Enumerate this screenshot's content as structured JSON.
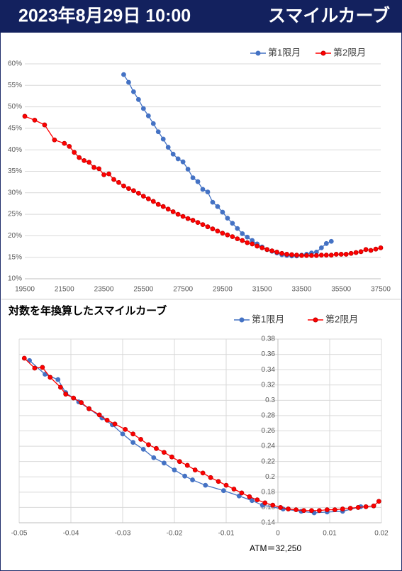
{
  "header": {
    "date": "2023年8月29日 10:00",
    "title": "スマイルカーブ"
  },
  "chart_data": [
    {
      "type": "line",
      "xlim": [
        19500,
        37500
      ],
      "xticks": [
        19500,
        21500,
        23500,
        25500,
        27500,
        29500,
        31500,
        33500,
        35500,
        37500
      ],
      "ylim": [
        10,
        60
      ],
      "yticks": [
        {
          "value": 10,
          "label": "10%"
        },
        {
          "value": 15,
          "label": "15%"
        },
        {
          "value": 20,
          "label": "20%"
        },
        {
          "value": 25,
          "label": "25%"
        },
        {
          "value": 30,
          "label": "30%"
        },
        {
          "value": 35,
          "label": "35%"
        },
        {
          "value": 40,
          "label": "40%"
        },
        {
          "value": 45,
          "label": "45%"
        },
        {
          "value": 50,
          "label": "50%"
        },
        {
          "value": 55,
          "label": "55%"
        },
        {
          "value": 60,
          "label": "60%"
        }
      ],
      "grid": [
        "y"
      ],
      "legend": "top-right",
      "series": [
        {
          "name": "第1限月",
          "color": "#4472c4",
          "marker_edge": "#4472c4",
          "x": [
            24500,
            24750,
            25000,
            25250,
            25500,
            25750,
            26000,
            26250,
            26500,
            26750,
            27000,
            27250,
            27500,
            27750,
            28000,
            28250,
            28500,
            28750,
            29000,
            29250,
            29500,
            29750,
            30000,
            30250,
            30500,
            30750,
            31000,
            31250,
            31500,
            31750,
            32000,
            32250,
            32500,
            32750,
            33000,
            33250,
            33500,
            33750,
            34000,
            34250,
            34500,
            34750,
            35000
          ],
          "values": [
            57.5,
            55.7,
            53.5,
            51.7,
            49.6,
            47.9,
            46.1,
            44.2,
            42.5,
            40.6,
            39.0,
            37.9,
            37.2,
            35.5,
            33.5,
            32.6,
            30.8,
            30.2,
            27.8,
            26.8,
            25.5,
            24.1,
            22.9,
            21.7,
            20.5,
            19.7,
            18.9,
            18.1,
            17.4,
            16.8,
            16.4,
            16.0,
            15.6,
            15.4,
            15.3,
            15.3,
            15.5,
            15.7,
            16.0,
            16.2,
            17.2,
            18.2,
            18.7
          ]
        },
        {
          "name": "第2限月",
          "color": "#ff0000",
          "marker_edge": "#c00000",
          "x": [
            19500,
            20000,
            20500,
            21000,
            21500,
            21750,
            22000,
            22250,
            22500,
            22750,
            23000,
            23250,
            23500,
            23750,
            24000,
            24250,
            24500,
            24750,
            25000,
            25250,
            25500,
            25750,
            26000,
            26250,
            26500,
            26750,
            27000,
            27250,
            27500,
            27750,
            28000,
            28250,
            28500,
            28750,
            29000,
            29250,
            29500,
            29750,
            30000,
            30250,
            30500,
            30750,
            31000,
            31250,
            31500,
            31750,
            32000,
            32250,
            32500,
            32750,
            33000,
            33250,
            33500,
            33750,
            34000,
            34250,
            34500,
            34750,
            35000,
            35250,
            35500,
            35750,
            36000,
            36250,
            36500,
            36750,
            37000,
            37250,
            37500
          ],
          "values": [
            47.8,
            46.9,
            45.8,
            42.3,
            41.5,
            40.8,
            39.4,
            38.2,
            37.5,
            37.1,
            35.9,
            35.6,
            34.2,
            34.4,
            33.1,
            32.4,
            31.6,
            31.0,
            30.5,
            29.9,
            29.2,
            28.6,
            28.0,
            27.3,
            26.8,
            26.2,
            25.6,
            25.0,
            24.5,
            24.0,
            23.6,
            23.1,
            22.6,
            22.1,
            21.6,
            21.1,
            20.6,
            20.2,
            19.8,
            19.3,
            18.9,
            18.4,
            18.1,
            17.6,
            17.2,
            16.8,
            16.5,
            16.2,
            15.9,
            15.7,
            15.6,
            15.5,
            15.4,
            15.4,
            15.4,
            15.4,
            15.5,
            15.5,
            15.5,
            15.7,
            15.7,
            15.7,
            15.9,
            16.1,
            16.3,
            16.8,
            16.6,
            16.9,
            17.2
          ]
        }
      ]
    },
    {
      "type": "line",
      "title": "対数を年換算したスマイルカーブ",
      "annotation": "ATM＝32,250",
      "xlim": [
        -0.05,
        0.02
      ],
      "xticks": [
        -0.05,
        -0.04,
        -0.03,
        -0.02,
        -0.01,
        0,
        0.01,
        0.02
      ],
      "ylim": [
        0.14,
        0.38
      ],
      "yticks": [
        0.14,
        0.16,
        0.18,
        0.2,
        0.22,
        0.24,
        0.26,
        0.28,
        0.3,
        0.32,
        0.34,
        0.36,
        0.38
      ],
      "grid": [
        "x",
        "y"
      ],
      "legend": "top-right",
      "y_axis_crosses": 0,
      "series": [
        {
          "name": "第1限月",
          "color": "#4472c4",
          "marker_edge": "#4472c4",
          "x": [
            -0.048,
            -0.045,
            -0.0425,
            -0.041,
            -0.0385,
            -0.0365,
            -0.034,
            -0.032,
            -0.03,
            -0.028,
            -0.026,
            -0.024,
            -0.022,
            -0.02,
            -0.018,
            -0.0165,
            -0.014,
            -0.0105,
            -0.0075,
            -0.005,
            -0.003,
            0.001,
            0.0045,
            0.007,
            0.0095,
            0.0125,
            0.016,
            0.0185
          ],
          "values": [
            0.352,
            0.334,
            0.327,
            0.31,
            0.298,
            0.289,
            0.277,
            0.268,
            0.256,
            0.245,
            0.236,
            0.225,
            0.218,
            0.209,
            0.201,
            0.196,
            0.189,
            0.182,
            0.175,
            0.169,
            0.163,
            0.158,
            0.155,
            0.153,
            0.154,
            0.155,
            0.161,
            0.162
          ]
        },
        {
          "name": "第2限月",
          "color": "#ff0000",
          "marker_edge": "#c00000",
          "x": [
            -0.049,
            -0.047,
            -0.0455,
            -0.044,
            -0.042,
            -0.041,
            -0.0395,
            -0.038,
            -0.0365,
            -0.0345,
            -0.033,
            -0.0315,
            -0.0295,
            -0.028,
            -0.0265,
            -0.025,
            -0.0235,
            -0.022,
            -0.0205,
            -0.019,
            -0.0175,
            -0.016,
            -0.0145,
            -0.013,
            -0.0115,
            -0.01,
            -0.0085,
            -0.007,
            -0.0055,
            -0.004,
            -0.0025,
            -0.001,
            0.0005,
            0.002,
            0.0035,
            0.005,
            0.0065,
            0.008,
            0.0095,
            0.011,
            0.0125,
            0.014,
            0.0155,
            0.017,
            0.0185,
            0.0195
          ],
          "values": [
            0.355,
            0.342,
            0.343,
            0.33,
            0.317,
            0.308,
            0.303,
            0.297,
            0.289,
            0.281,
            0.274,
            0.269,
            0.262,
            0.256,
            0.249,
            0.242,
            0.237,
            0.232,
            0.226,
            0.22,
            0.215,
            0.209,
            0.205,
            0.199,
            0.194,
            0.189,
            0.184,
            0.179,
            0.174,
            0.17,
            0.166,
            0.163,
            0.16,
            0.158,
            0.157,
            0.156,
            0.156,
            0.156,
            0.157,
            0.157,
            0.158,
            0.159,
            0.16,
            0.161,
            0.162,
            0.168
          ]
        }
      ]
    }
  ]
}
